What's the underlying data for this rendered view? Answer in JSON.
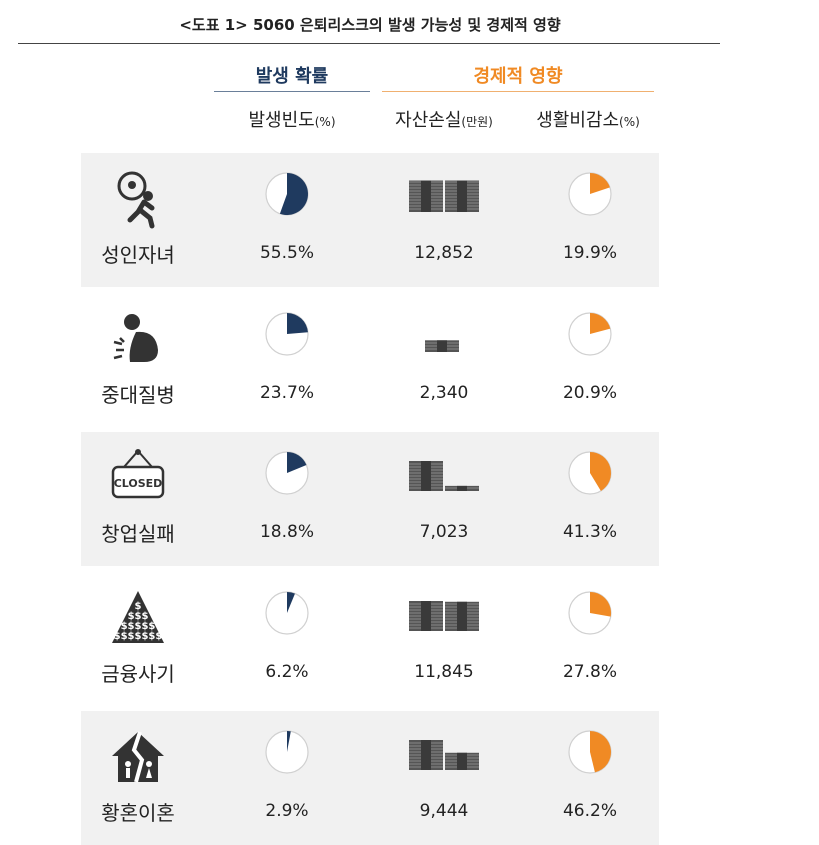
{
  "title": "<도표 1> 5060 은퇴리스크의 발생 가능성 및 경제적 영향",
  "group_headers": {
    "probability": "발생 확률",
    "economic": "경제적 영향"
  },
  "column_headers": [
    {
      "name": "발생빈도",
      "unit": "(%)"
    },
    {
      "name": "자산손실",
      "unit": "(만원)"
    },
    {
      "name": "생활비감소",
      "unit": "(%)"
    }
  ],
  "colors": {
    "navy": "#1f3a5f",
    "orange": "#f08a24",
    "money": "#555555",
    "icon": "#333333",
    "row_shade": "#f1f1f1"
  },
  "chart_data": {
    "type": "table",
    "categories": [
      "성인자녀",
      "중대질병",
      "창업실패",
      "금융사기",
      "황혼이혼"
    ],
    "icons": [
      "adult-child-burden-icon",
      "illness-icon",
      "closed-sign-icon",
      "money-pyramid-icon",
      "broken-house-icon"
    ],
    "series": [
      {
        "name": "발생빈도(%)",
        "values": [
          55.5,
          23.7,
          18.8,
          6.2,
          2.9
        ],
        "labels": [
          "55.5%",
          "23.7%",
          "18.8%",
          "6.2%",
          "2.9%"
        ]
      },
      {
        "name": "자산손실(만원)",
        "values": [
          12852,
          2340,
          7023,
          11845,
          9444
        ],
        "labels": [
          "12,852",
          "2,340",
          "7,023",
          "11,845",
          "9,444"
        ]
      },
      {
        "name": "생활비감소(%)",
        "values": [
          19.9,
          20.9,
          41.3,
          27.8,
          46.2
        ],
        "labels": [
          "19.9%",
          "20.9%",
          "41.3%",
          "27.8%",
          "46.2%"
        ]
      }
    ]
  }
}
